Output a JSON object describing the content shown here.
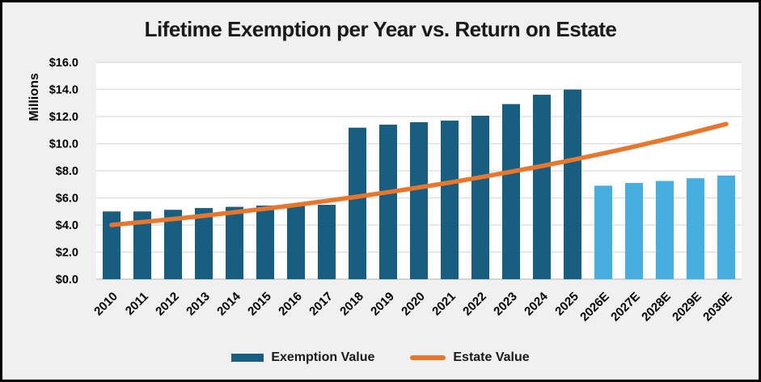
{
  "chart_data": {
    "type": "bar",
    "title": "Lifetime Exemption per Year vs. Return on Estate",
    "ylabel": "Millions",
    "xlabel": "",
    "categories": [
      "2010",
      "2011",
      "2012",
      "2013",
      "2014",
      "2015",
      "2016",
      "2017",
      "2018",
      "2019",
      "2020",
      "2021",
      "2022",
      "2023",
      "2024",
      "2025",
      "2026E",
      "2027E",
      "2028E",
      "2029E",
      "2030E"
    ],
    "series": [
      {
        "name": "Exemption Value",
        "render": "bar",
        "values": [
          5.0,
          5.0,
          5.12,
          5.25,
          5.34,
          5.43,
          5.45,
          5.49,
          11.18,
          11.4,
          11.58,
          11.7,
          12.06,
          12.92,
          13.61,
          13.99,
          6.9,
          7.1,
          7.25,
          7.45,
          7.65
        ],
        "color_actual": "#175E82",
        "color_projected": "#46AFDF",
        "projected_start_index": 16
      },
      {
        "name": "Estate Value",
        "render": "line",
        "values": [
          4.0,
          4.22,
          4.44,
          4.68,
          4.94,
          5.2,
          5.48,
          5.78,
          6.09,
          6.42,
          6.77,
          7.13,
          7.52,
          7.93,
          8.35,
          8.8,
          9.28,
          9.78,
          10.31,
          10.87,
          11.45
        ],
        "color": "#E8762C"
      }
    ],
    "ylim": [
      0,
      16
    ],
    "ytick_step": 2,
    "ytick_labels": [
      "$0.0",
      "$2.0",
      "$4.0",
      "$6.0",
      "$8.0",
      "$10.0",
      "$12.0",
      "$14.0",
      "$16.0"
    ],
    "grid": true,
    "legend_position": "bottom",
    "colors": {
      "frame_background": "#F0F0F0",
      "plot_background": "#FFFFFF",
      "gridline": "#DADADA",
      "axis_line": "#D4D4D4",
      "text": "#000000"
    }
  }
}
